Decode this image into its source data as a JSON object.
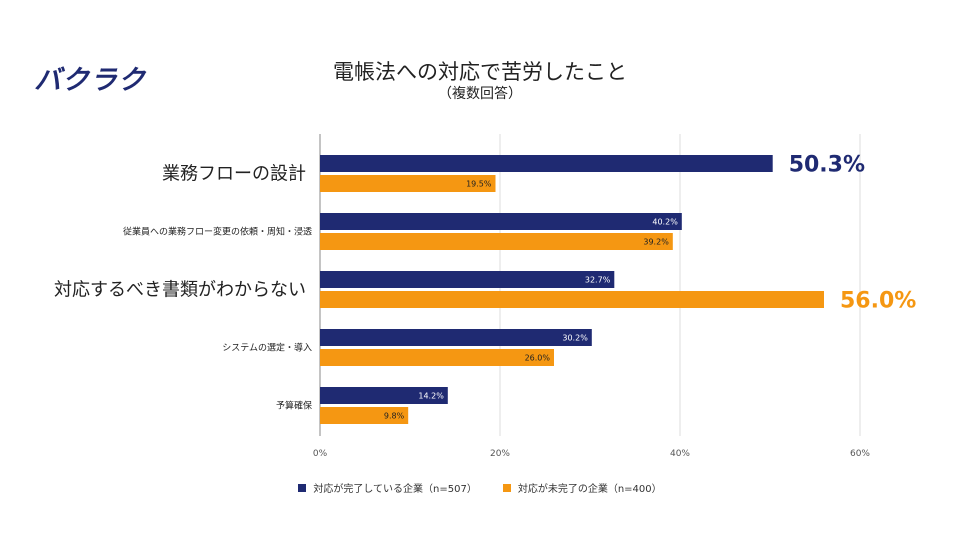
{
  "logo": "バクラク",
  "chart_data": {
    "type": "bar",
    "orientation": "horizontal",
    "title": "電帳法への対応で苦労したこと",
    "subtitle": "（複数回答）",
    "categories": [
      "業務フローの設計",
      "従業員への業務フロー変更の依頼・周知・浸透",
      "対応するべき書類がわからない",
      "システムの選定・導入",
      "予算確保"
    ],
    "series": [
      {
        "name": "対応が完了している企業（n=507）",
        "color": "#1f2a72",
        "values": [
          50.3,
          40.2,
          32.7,
          30.2,
          14.2
        ]
      },
      {
        "name": "対応が未完了の企業（n=400）",
        "color": "#f59712",
        "values": [
          19.5,
          39.2,
          56.0,
          26.0,
          9.8
        ]
      }
    ],
    "value_labels": [
      [
        "50.3%",
        "40.2%",
        "32.7%",
        "30.2%",
        "14.2%"
      ],
      [
        "19.5%",
        "39.2%",
        "56.0%",
        "26.0%",
        "9.8%"
      ]
    ],
    "highlights": [
      {
        "series": 0,
        "category": 0
      },
      {
        "series": 1,
        "category": 2
      }
    ],
    "emphasized_categories": [
      0,
      2
    ],
    "x_ticks": [
      {
        "value": 0,
        "label": "0%"
      },
      {
        "value": 20,
        "label": "20%"
      },
      {
        "value": 40,
        "label": "40%"
      },
      {
        "value": 60,
        "label": "60%"
      }
    ],
    "xlim": [
      0,
      60
    ],
    "legend_position": "bottom",
    "grid": true
  }
}
